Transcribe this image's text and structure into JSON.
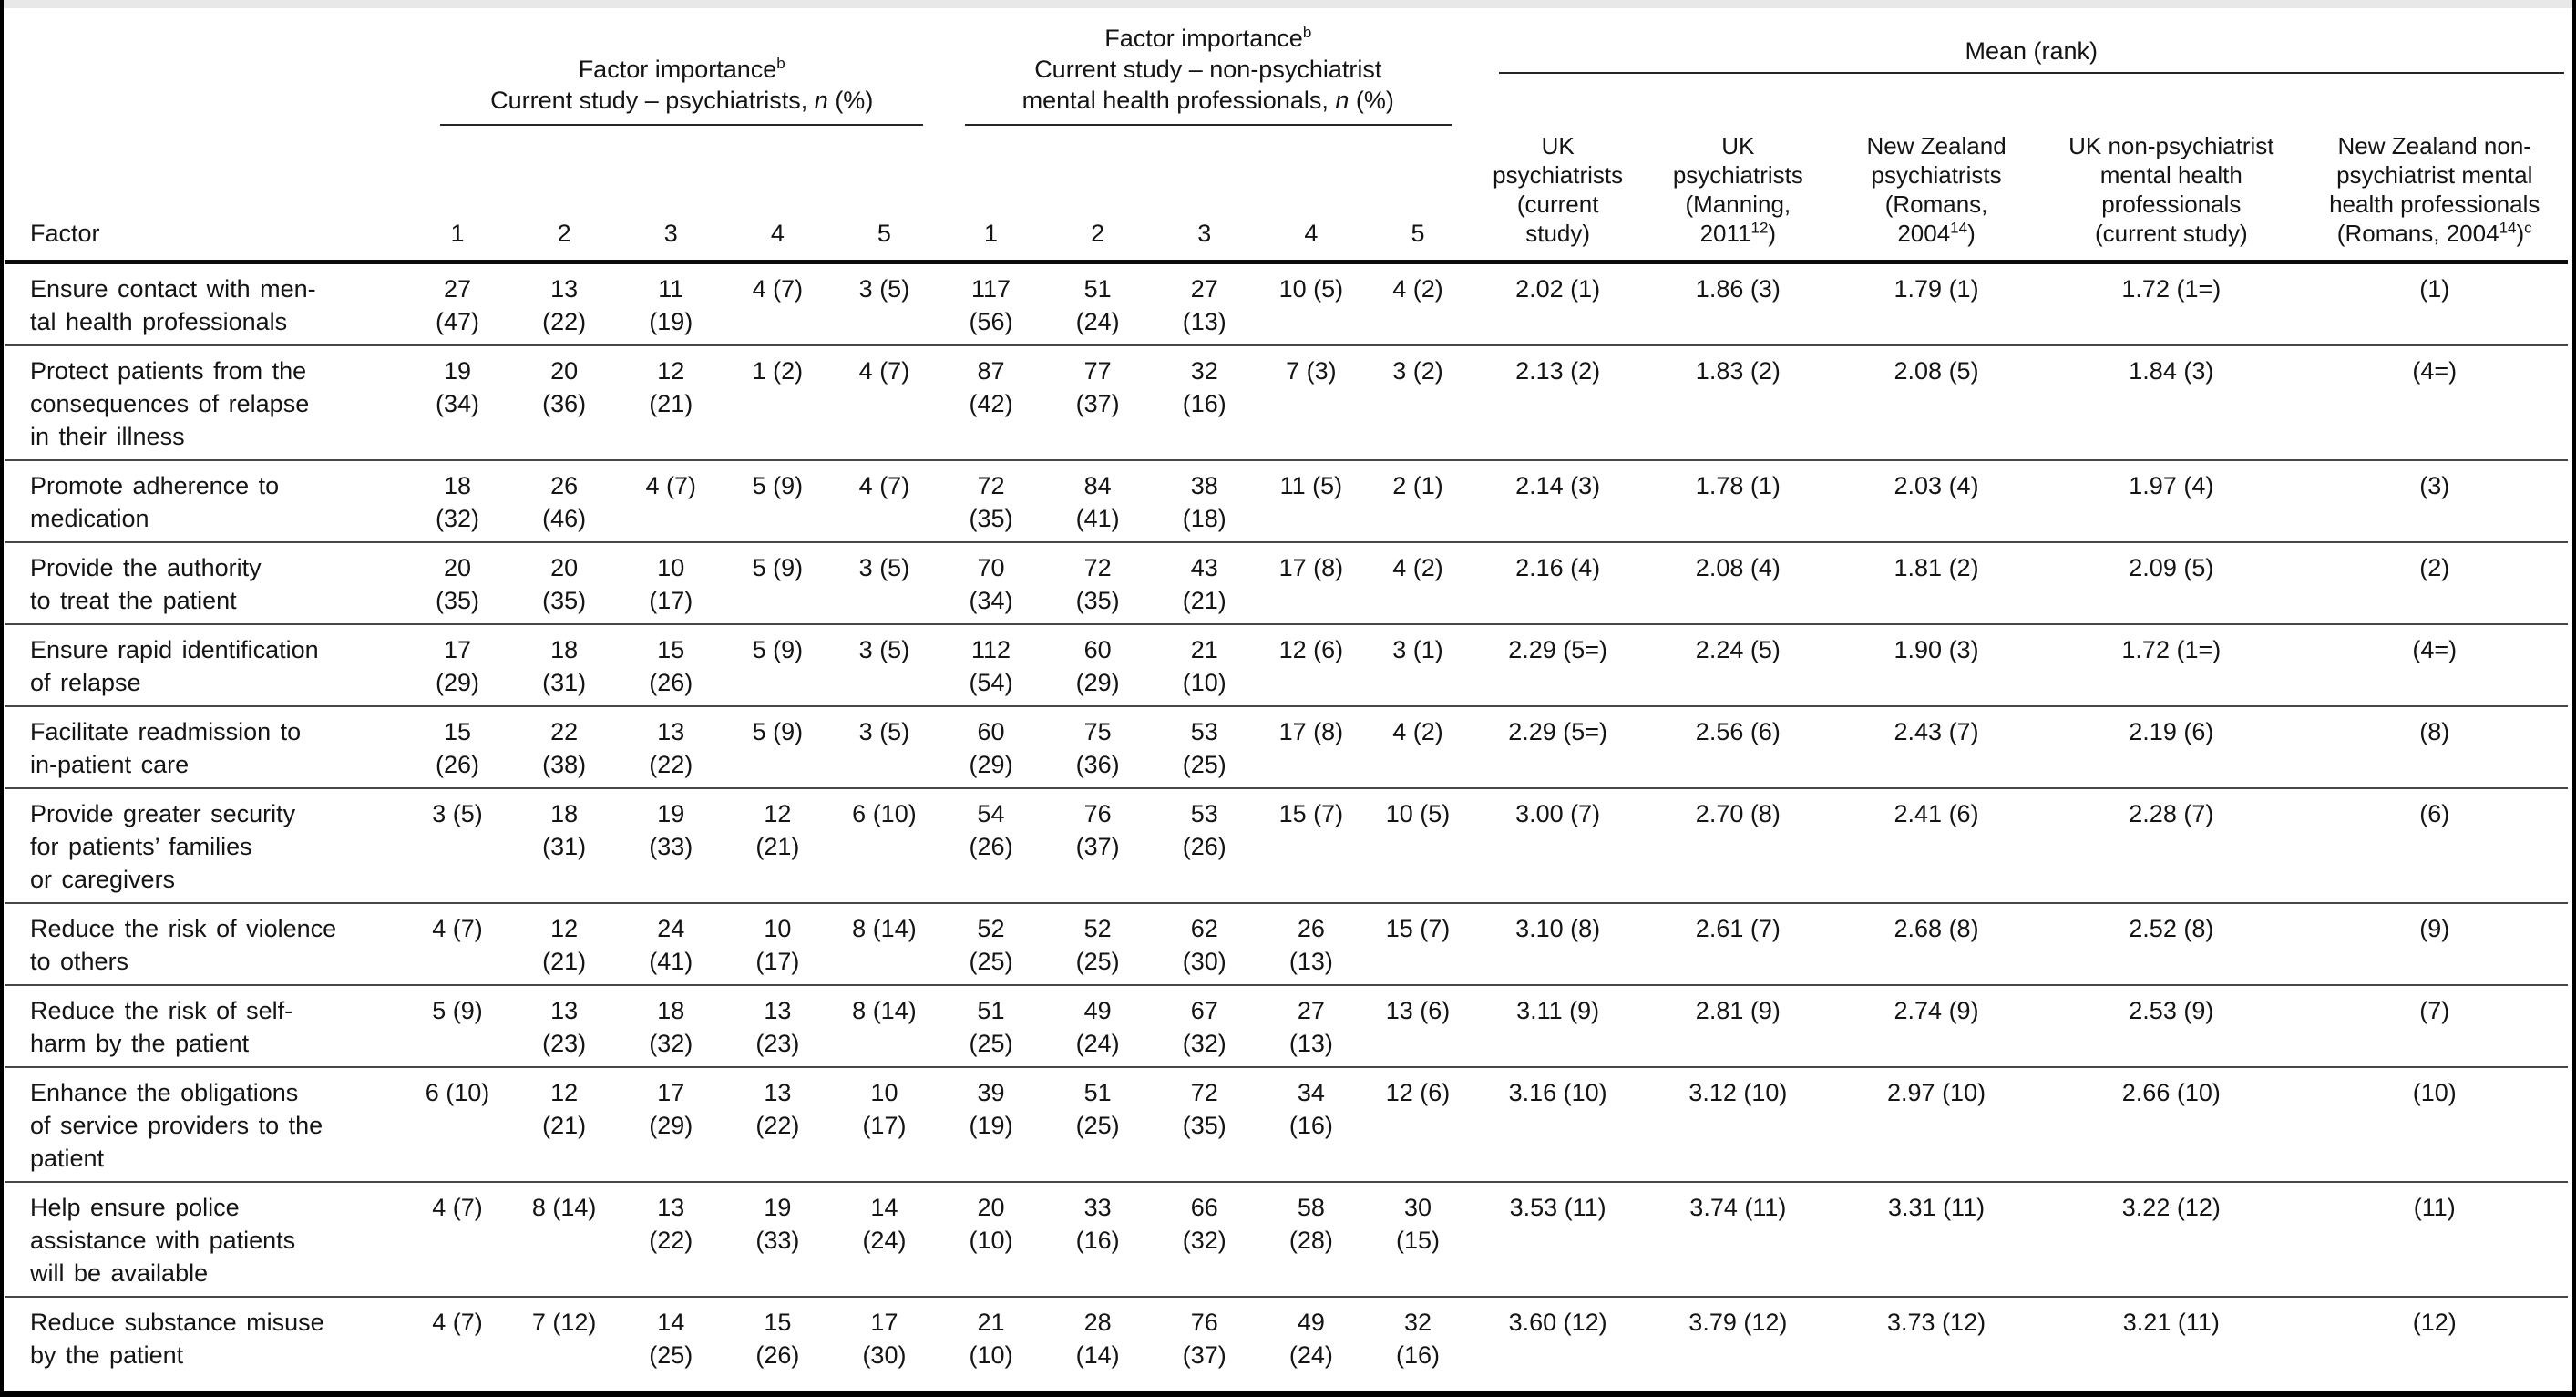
{
  "table": {
    "factor_header": "Factor",
    "groups": {
      "psychiatrists": {
        "title": "Factor importance",
        "title_sup": "b",
        "subtitle_pre": "Current study – psychiatrists, ",
        "subtitle_n": "n",
        "subtitle_post": " (%)",
        "scale": [
          "1",
          "2",
          "3",
          "4",
          "5"
        ]
      },
      "non_psychiatrists": {
        "title": "Factor importance",
        "title_sup": "b",
        "subtitle_line1": "Current study – non-psychiatrist",
        "subtitle_line2_pre": "mental health professionals, ",
        "subtitle_n": "n",
        "subtitle_post": " (%)",
        "scale": [
          "1",
          "2",
          "3",
          "4",
          "5"
        ]
      }
    },
    "mean": {
      "title": "Mean (rank)",
      "columns": [
        {
          "pre": "UK\npsychiatrists\n(current\nstudy)"
        },
        {
          "pre": "UK\npsychiatrists\n(Manning,\n2011",
          "sup": "12",
          "post": ")"
        },
        {
          "pre": "New Zealand\npsychiatrists\n(Romans,\n2004",
          "sup": "14",
          "post": ")"
        },
        {
          "pre": "UK non-psychiatrist\nmental health\nprofessionals\n(current study)"
        },
        {
          "pre": "New Zealand non-\npsychiatrist mental\nhealth professionals\n(Romans, 2004",
          "sup": "14",
          "post": ")",
          "sup2": "c"
        }
      ]
    },
    "rows": [
      {
        "factor": "Ensure contact with men-\ntal health professionals",
        "p": [
          "27\n(47)",
          "13\n(22)",
          "11\n(19)",
          "4 (7)",
          "3 (5)"
        ],
        "np": [
          "117\n(56)",
          "51\n(24)",
          "27\n(13)",
          "10 (5)",
          "4 (2)"
        ],
        "means": [
          "2.02 (1)",
          "1.86 (3)",
          "1.79 (1)",
          "1.72 (1=)",
          "(1)"
        ]
      },
      {
        "factor": "Protect patients from the\nconsequences of relapse\nin their illness",
        "p": [
          "19\n(34)",
          "20\n(36)",
          "12\n(21)",
          "1 (2)",
          "4 (7)"
        ],
        "np": [
          "87\n(42)",
          "77\n(37)",
          "32\n(16)",
          "7 (3)",
          "3 (2)"
        ],
        "means": [
          "2.13 (2)",
          "1.83 (2)",
          "2.08 (5)",
          "1.84 (3)",
          "(4=)"
        ]
      },
      {
        "factor": "Promote adherence to\nmedication",
        "p": [
          "18\n(32)",
          "26\n(46)",
          "4 (7)",
          "5 (9)",
          "4 (7)"
        ],
        "np": [
          "72\n(35)",
          "84\n(41)",
          "38\n(18)",
          "11 (5)",
          "2 (1)"
        ],
        "means": [
          "2.14 (3)",
          "1.78 (1)",
          "2.03 (4)",
          "1.97 (4)",
          "(3)"
        ]
      },
      {
        "factor": "Provide the authority\nto treat the patient",
        "p": [
          "20\n(35)",
          "20\n(35)",
          "10\n(17)",
          "5 (9)",
          "3 (5)"
        ],
        "np": [
          "70\n(34)",
          "72\n(35)",
          "43\n(21)",
          "17 (8)",
          "4 (2)"
        ],
        "means": [
          "2.16 (4)",
          "2.08 (4)",
          "1.81 (2)",
          "2.09 (5)",
          "(2)"
        ]
      },
      {
        "factor": "Ensure rapid identification\nof relapse",
        "p": [
          "17\n(29)",
          "18\n(31)",
          "15\n(26)",
          "5 (9)",
          "3 (5)"
        ],
        "np": [
          "112\n(54)",
          "60\n(29)",
          "21\n(10)",
          "12 (6)",
          "3 (1)"
        ],
        "means": [
          "2.29 (5=)",
          "2.24 (5)",
          "1.90 (3)",
          "1.72 (1=)",
          "(4=)"
        ]
      },
      {
        "factor": "Facilitate readmission to\nin-patient care",
        "p": [
          "15\n(26)",
          "22\n(38)",
          "13\n(22)",
          "5 (9)",
          "3 (5)"
        ],
        "np": [
          "60\n(29)",
          "75\n(36)",
          "53\n(25)",
          "17 (8)",
          "4 (2)"
        ],
        "means": [
          "2.29 (5=)",
          "2.56 (6)",
          "2.43 (7)",
          "2.19 (6)",
          "(8)"
        ]
      },
      {
        "factor": "Provide greater security\nfor patients’ families\nor caregivers",
        "p": [
          "3 (5)",
          "18\n(31)",
          "19\n(33)",
          "12\n(21)",
          "6 (10)"
        ],
        "np": [
          "54\n(26)",
          "76\n(37)",
          "53\n(26)",
          "15 (7)",
          "10 (5)"
        ],
        "means": [
          "3.00 (7)",
          "2.70 (8)",
          "2.41 (6)",
          "2.28 (7)",
          "(6)"
        ]
      },
      {
        "factor": "Reduce the risk of violence\nto others",
        "p": [
          "4 (7)",
          "12\n(21)",
          "24\n(41)",
          "10\n(17)",
          "8 (14)"
        ],
        "np": [
          "52\n(25)",
          "52\n(25)",
          "62\n(30)",
          "26\n(13)",
          "15 (7)"
        ],
        "means": [
          "3.10 (8)",
          "2.61 (7)",
          "2.68 (8)",
          "2.52 (8)",
          "(9)"
        ]
      },
      {
        "factor": "Reduce the risk of self-\nharm by the patient",
        "p": [
          "5 (9)",
          "13\n(23)",
          "18\n(32)",
          "13\n(23)",
          "8 (14)"
        ],
        "np": [
          "51\n(25)",
          "49\n(24)",
          "67\n(32)",
          "27\n(13)",
          "13 (6)"
        ],
        "means": [
          "3.11 (9)",
          "2.81 (9)",
          "2.74 (9)",
          "2.53 (9)",
          "(7)"
        ]
      },
      {
        "factor": "Enhance the obligations\nof service providers to the\npatient",
        "p": [
          "6 (10)",
          "12\n(21)",
          "17\n(29)",
          "13\n(22)",
          "10\n(17)"
        ],
        "np": [
          "39\n(19)",
          "51\n(25)",
          "72\n(35)",
          "34\n(16)",
          "12 (6)"
        ],
        "means": [
          "3.16 (10)",
          "3.12 (10)",
          "2.97 (10)",
          "2.66 (10)",
          "(10)"
        ]
      },
      {
        "factor": "Help ensure police\nassistance with patients\nwill be available",
        "p": [
          "4 (7)",
          "8 (14)",
          "13\n(22)",
          "19\n(33)",
          "14\n(24)"
        ],
        "np": [
          "20\n(10)",
          "33\n(16)",
          "66\n(32)",
          "58\n(28)",
          "30\n(15)"
        ],
        "means": [
          "3.53 (11)",
          "3.74 (11)",
          "3.31 (11)",
          "3.22 (12)",
          "(11)"
        ]
      },
      {
        "factor": "Reduce substance misuse\nby the patient",
        "p": [
          "4 (7)",
          "7 (12)",
          "14\n(25)",
          "15\n(26)",
          "17\n(30)"
        ],
        "np": [
          "21\n(10)",
          "28\n(14)",
          "76\n(37)",
          "49\n(24)",
          "32\n(16)"
        ],
        "means": [
          "3.60 (12)",
          "3.79 (12)",
          "3.73 (12)",
          "3.21 (11)",
          "(12)"
        ]
      }
    ]
  },
  "colors": {
    "frame": "#000000",
    "thick_rule": "#0b0b0b",
    "thin_rule": "#474747",
    "header_rule": "#262626",
    "top_strip": "#e8e8e8",
    "text": "#141414"
  }
}
